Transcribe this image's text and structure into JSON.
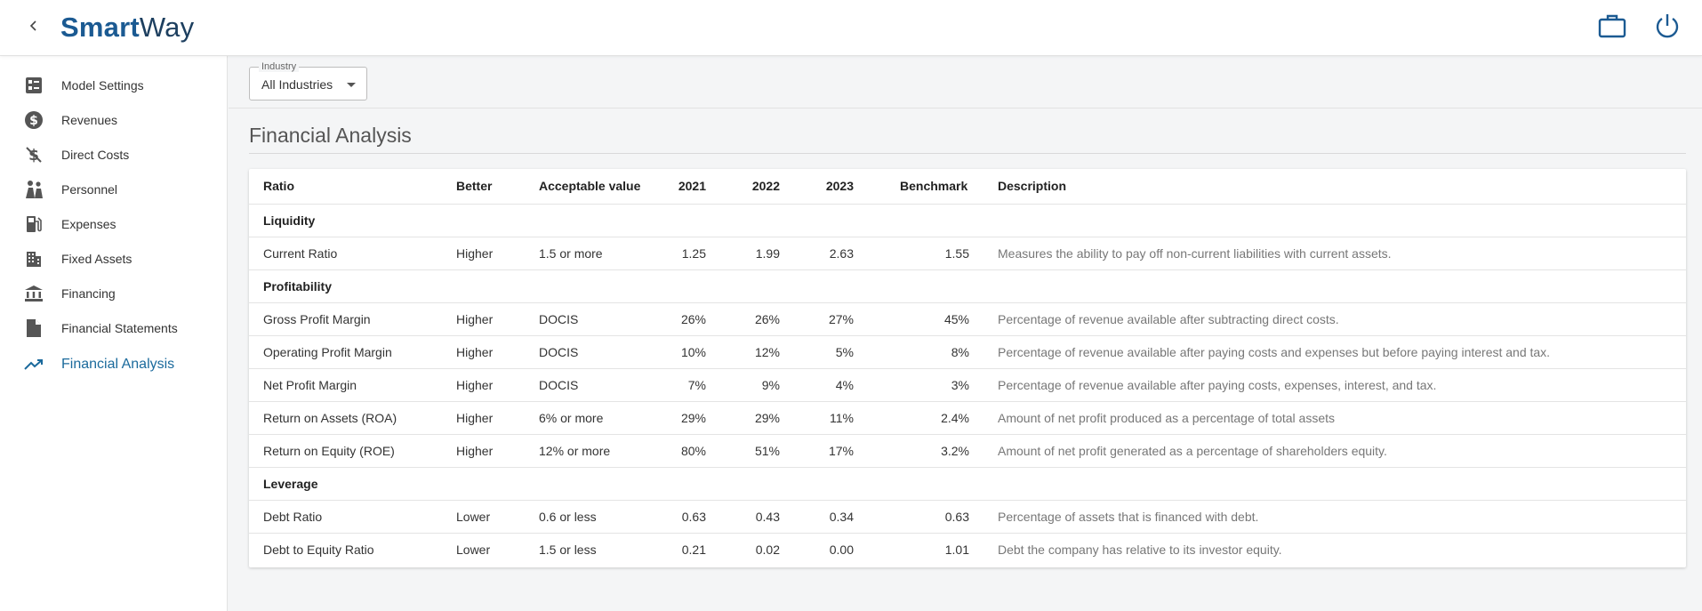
{
  "header": {
    "logo_bold": "Smart",
    "logo_regular": "Way",
    "back_icon": "chevron-left-icon",
    "briefcase_icon": "briefcase-icon",
    "power_icon": "power-icon"
  },
  "sidebar": {
    "items": [
      {
        "label": "Model Settings",
        "icon": "settings-list-icon"
      },
      {
        "label": "Revenues",
        "icon": "dollar-circle-icon"
      },
      {
        "label": "Direct Costs",
        "icon": "money-off-icon"
      },
      {
        "label": "Personnel",
        "icon": "people-icon"
      },
      {
        "label": "Expenses",
        "icon": "fuel-icon"
      },
      {
        "label": "Fixed Assets",
        "icon": "building-icon"
      },
      {
        "label": "Financing",
        "icon": "bank-icon"
      },
      {
        "label": "Financial Statements",
        "icon": "document-icon"
      },
      {
        "label": "Financial Analysis",
        "icon": "trending-up-icon"
      }
    ],
    "active_index": 8
  },
  "filter": {
    "label": "Industry",
    "value": "All Industries"
  },
  "page": {
    "title": "Financial Analysis"
  },
  "table": {
    "columns": [
      "Ratio",
      "Better",
      "Acceptable value",
      "2021",
      "2022",
      "2023",
      "Benchmark",
      "Description"
    ],
    "rows": [
      {
        "group": "Liquidity"
      },
      {
        "ratio": "Current Ratio",
        "better": "Higher",
        "acceptable": "1.5 or more",
        "y2021": "1.25",
        "y2022": "1.99",
        "y2023": "2.63",
        "benchmark": "1.55",
        "description": "Measures the ability to pay off non-current liabilities with current assets."
      },
      {
        "group": "Profitability"
      },
      {
        "ratio": "Gross Profit Margin",
        "better": "Higher",
        "acceptable": "DOCIS",
        "y2021": "26%",
        "y2022": "26%",
        "y2023": "27%",
        "benchmark": "45%",
        "description": "Percentage of revenue available after subtracting direct costs."
      },
      {
        "ratio": "Operating Profit Margin",
        "better": "Higher",
        "acceptable": "DOCIS",
        "y2021": "10%",
        "y2022": "12%",
        "y2023": "5%",
        "benchmark": "8%",
        "description": "Percentage of revenue available after paying costs and expenses but before paying interest and tax."
      },
      {
        "ratio": "Net Profit Margin",
        "better": "Higher",
        "acceptable": "DOCIS",
        "y2021": "7%",
        "y2022": "9%",
        "y2023": "4%",
        "benchmark": "3%",
        "description": "Percentage of revenue available after paying costs, expenses, interest, and tax."
      },
      {
        "ratio": "Return on Assets (ROA)",
        "better": "Higher",
        "acceptable": "6% or more",
        "y2021": "29%",
        "y2022": "29%",
        "y2023": "11%",
        "benchmark": "2.4%",
        "description": "Amount of net profit produced as a percentage of total assets"
      },
      {
        "ratio": "Return on Equity (ROE)",
        "better": "Higher",
        "acceptable": "12% or more",
        "y2021": "80%",
        "y2022": "51%",
        "y2023": "17%",
        "benchmark": "3.2%",
        "description": "Amount of net profit generated as a percentage of shareholders equity."
      },
      {
        "group": "Leverage"
      },
      {
        "ratio": "Debt Ratio",
        "better": "Lower",
        "acceptable": "0.6 or less",
        "y2021": "0.63",
        "y2022": "0.43",
        "y2023": "0.34",
        "benchmark": "0.63",
        "description": "Percentage of assets that is financed with debt."
      },
      {
        "ratio": "Debt to Equity Ratio",
        "better": "Lower",
        "acceptable": "1.5 or less",
        "y2021": "0.21",
        "y2022": "0.02",
        "y2023": "0.00",
        "benchmark": "1.01",
        "description": "Debt the company has relative to its investor equity."
      }
    ]
  },
  "colors": {
    "brand": "#1b5a92",
    "accent": "#1b6a9c",
    "icon": "#555555"
  }
}
